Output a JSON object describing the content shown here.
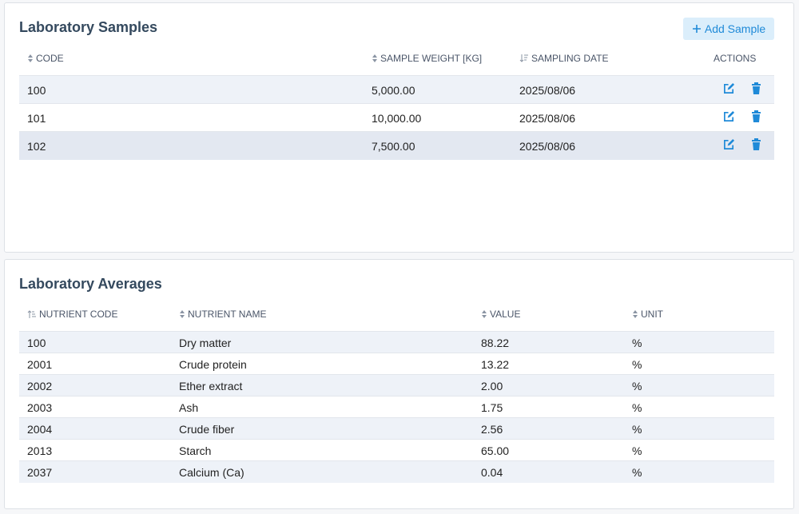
{
  "samples": {
    "title": "Laboratory Samples",
    "add_button": "Add Sample",
    "columns": [
      "CODE",
      "SAMPLE WEIGHT [KG]",
      "SAMPLING DATE",
      "ACTIONS"
    ],
    "rows": [
      [
        "100",
        "5,000.00",
        "2025/08/06"
      ],
      [
        "101",
        "10,000.00",
        "2025/08/06"
      ],
      [
        "102",
        "7,500.00",
        "2025/08/06"
      ]
    ]
  },
  "averages": {
    "title": "Laboratory Averages",
    "columns": [
      "NUTRIENT CODE",
      "NUTRIENT NAME",
      "VALUE",
      "UNIT"
    ],
    "rows": [
      [
        "100",
        "Dry matter",
        "88.22",
        "%"
      ],
      [
        "2001",
        "Crude protein",
        "13.22",
        "%"
      ],
      [
        "2002",
        "Ether extract",
        "2.00",
        "%"
      ],
      [
        "2003",
        "Ash",
        "1.75",
        "%"
      ],
      [
        "2004",
        "Crude fiber",
        "2.56",
        "%"
      ],
      [
        "2013",
        "Starch",
        "65.00",
        "%"
      ],
      [
        "2037",
        "Calcium (Ca)",
        "0.04",
        "%"
      ]
    ]
  }
}
